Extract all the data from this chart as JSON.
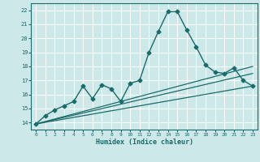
{
  "title": "",
  "xlabel": "Humidex (Indice chaleur)",
  "ylabel": "",
  "background_color": "#cde8e8",
  "grid_color": "#ffffff",
  "line_color": "#1a6b6b",
  "xlim": [
    -0.5,
    23.5
  ],
  "ylim": [
    13.5,
    22.5
  ],
  "xticks": [
    0,
    1,
    2,
    3,
    4,
    5,
    6,
    7,
    8,
    9,
    10,
    11,
    12,
    13,
    14,
    15,
    16,
    17,
    18,
    19,
    20,
    21,
    22,
    23
  ],
  "yticks": [
    14,
    15,
    16,
    17,
    18,
    19,
    20,
    21,
    22
  ],
  "series": [
    {
      "x": [
        0,
        1,
        2,
        3,
        4,
        5,
        6,
        7,
        8,
        9,
        10,
        11,
        12,
        13,
        14,
        15,
        16,
        17,
        18,
        19,
        20,
        21,
        22,
        23
      ],
      "y": [
        13.9,
        14.5,
        14.9,
        15.2,
        15.5,
        16.6,
        15.7,
        16.7,
        16.4,
        15.5,
        16.8,
        17.0,
        19.0,
        20.5,
        21.9,
        21.9,
        20.6,
        19.4,
        18.1,
        17.6,
        17.5,
        17.9,
        17.0,
        16.6
      ],
      "marker": "D",
      "markersize": 2.5,
      "linewidth": 1.0,
      "zorder": 4
    },
    {
      "x": [
        0,
        23
      ],
      "y": [
        13.9,
        16.6
      ],
      "marker": null,
      "linewidth": 0.9,
      "zorder": 2
    },
    {
      "x": [
        0,
        23
      ],
      "y": [
        13.9,
        17.5
      ],
      "marker": null,
      "linewidth": 0.9,
      "zorder": 2
    },
    {
      "x": [
        0,
        23
      ],
      "y": [
        13.9,
        18.0
      ],
      "marker": null,
      "linewidth": 0.9,
      "zorder": 2
    }
  ]
}
